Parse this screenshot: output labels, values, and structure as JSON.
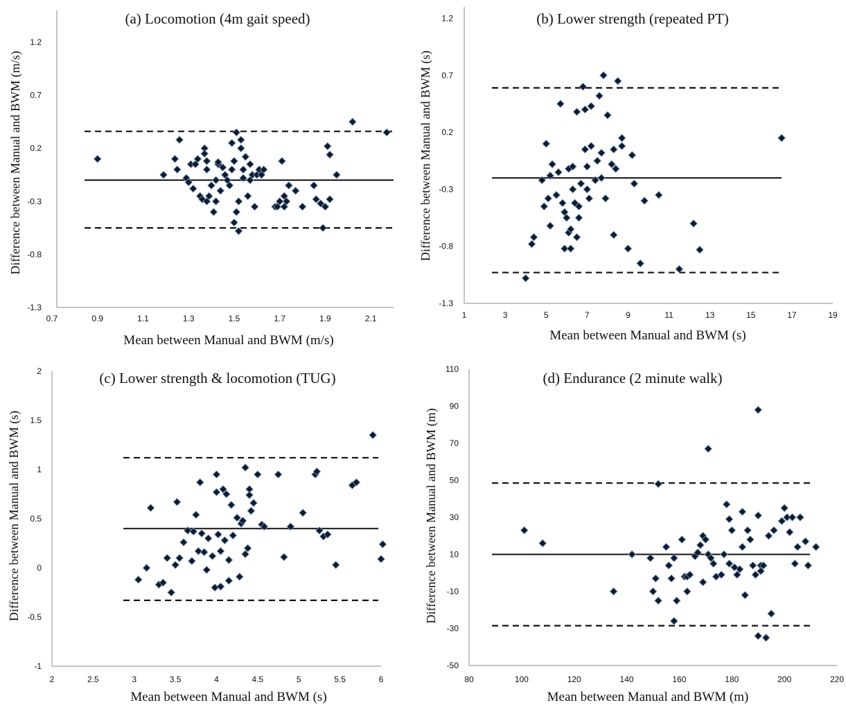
{
  "chart_data": [
    {
      "type": "scatter",
      "title": "(a) Locomotion (4m gait speed)",
      "xlabel": "Mean between Manual and BWM (m/s)",
      "ylabel": "Difference between Manual and BWM (m/s)",
      "xlim": [
        0.7,
        2.2
      ],
      "ylim": [
        -1.3,
        1.5
      ],
      "xticks": [
        "0.7",
        "0.9",
        "1.1",
        "1.3",
        "1.5",
        "1.7",
        "1.9",
        "2.1"
      ],
      "yticks": [
        "-1.3",
        "-0.8",
        "-0.3",
        "0.2",
        "0.7",
        "1.2"
      ],
      "mean_line": -0.1,
      "limits_of_agreement": [
        0.36,
        -0.55
      ],
      "x": [
        0.9,
        1.19,
        1.24,
        1.25,
        1.26,
        1.29,
        1.3,
        1.31,
        1.32,
        1.33,
        1.34,
        1.35,
        1.36,
        1.37,
        1.37,
        1.38,
        1.38,
        1.38,
        1.39,
        1.4,
        1.41,
        1.42,
        1.42,
        1.43,
        1.43,
        1.44,
        1.45,
        1.46,
        1.47,
        1.48,
        1.49,
        1.49,
        1.5,
        1.5,
        1.51,
        1.51,
        1.52,
        1.52,
        1.53,
        1.53,
        1.54,
        1.54,
        1.55,
        1.56,
        1.57,
        1.57,
        1.58,
        1.59,
        1.6,
        1.61,
        1.62,
        1.63,
        1.68,
        1.69,
        1.7,
        1.71,
        1.72,
        1.72,
        1.73,
        1.74,
        1.77,
        1.8,
        1.85,
        1.86,
        1.88,
        1.89,
        1.9,
        1.91,
        1.92,
        1.92,
        1.95,
        2.02,
        2.17
      ],
      "y": [
        0.1,
        -0.05,
        0.1,
        0.0,
        0.28,
        -0.08,
        -0.12,
        0.05,
        -0.18,
        0.05,
        0.1,
        -0.25,
        -0.28,
        0.2,
        0.15,
        -0.3,
        0.0,
        0.08,
        -0.25,
        -0.15,
        -0.4,
        -0.1,
        -0.3,
        0.05,
        0.07,
        -0.2,
        0.02,
        -0.05,
        -0.1,
        -0.15,
        0.25,
        0.0,
        -0.5,
        0.08,
        0.35,
        -0.4,
        -0.58,
        -0.3,
        0.2,
        0.28,
        0.0,
        -0.08,
        0.12,
        -0.25,
        -0.1,
        0.05,
        -0.05,
        -0.35,
        -0.05,
        0.0,
        -0.05,
        0.0,
        -0.35,
        -0.35,
        -0.3,
        0.08,
        -0.35,
        -0.25,
        -0.3,
        -0.15,
        -0.2,
        -0.35,
        -0.15,
        -0.28,
        -0.32,
        -0.55,
        -0.35,
        0.22,
        -0.28,
        0.14,
        -0.05,
        0.45,
        0.35
      ]
    },
    {
      "type": "scatter",
      "title": "(b) Lower strength (repeated PT)",
      "xlabel": "Mean between Manual and BWM (s)",
      "ylabel": "Difference between Manual and BWM (s)",
      "xlim": [
        1,
        19
      ],
      "ylim": [
        -1.3,
        1.3
      ],
      "xticks": [
        "1",
        "3",
        "5",
        "7",
        "9",
        "11",
        "13",
        "15",
        "17",
        "19"
      ],
      "yticks": [
        "-1.3",
        "-0.8",
        "-0.3",
        "0.2",
        "0.7",
        "1.2"
      ],
      "mean_line": -0.2,
      "limits_of_agreement": [
        0.59,
        -1.03
      ],
      "x": [
        4.0,
        4.3,
        4.4,
        4.8,
        4.9,
        5.0,
        5.1,
        5.2,
        5.2,
        5.3,
        5.5,
        5.6,
        5.7,
        5.8,
        5.9,
        5.9,
        6.0,
        6.1,
        6.1,
        6.2,
        6.2,
        6.3,
        6.3,
        6.4,
        6.5,
        6.5,
        6.6,
        6.6,
        6.7,
        6.8,
        6.9,
        6.9,
        7.0,
        7.0,
        7.1,
        7.2,
        7.2,
        7.4,
        7.5,
        7.6,
        7.7,
        7.7,
        7.8,
        7.9,
        8.0,
        8.2,
        8.3,
        8.3,
        8.4,
        8.5,
        8.7,
        8.7,
        9.0,
        9.2,
        9.3,
        9.6,
        9.8,
        10.5,
        11.5,
        12.2,
        12.5,
        16.5
      ],
      "y": [
        -1.08,
        -0.78,
        -0.72,
        -0.22,
        -0.45,
        0.1,
        -0.38,
        -0.62,
        -0.18,
        -0.08,
        -0.35,
        -0.15,
        0.45,
        -0.42,
        -0.82,
        -0.5,
        -0.55,
        -0.12,
        -0.68,
        -0.82,
        -0.65,
        -0.1,
        -0.3,
        -0.42,
        0.38,
        -0.72,
        -0.55,
        -0.45,
        -0.25,
        0.6,
        0.05,
        0.4,
        -0.3,
        -0.1,
        -0.38,
        0.08,
        0.43,
        -0.22,
        -0.05,
        0.52,
        -0.2,
        0.02,
        0.7,
        -0.38,
        0.35,
        -0.08,
        -0.7,
        0.05,
        -0.12,
        0.65,
        0.08,
        0.15,
        -0.82,
        0.0,
        -0.25,
        -0.95,
        -0.4,
        -0.35,
        -1.0,
        -0.6,
        -0.83,
        0.15
      ]
    },
    {
      "type": "scatter",
      "title": "(c) Lower strength & locomotion (TUG)",
      "xlabel": "Mean between Manual and BWM (s)",
      "ylabel": "Difference between Manual and BWM (s)",
      "xlim": [
        2,
        6
      ],
      "ylim": [
        -1,
        2
      ],
      "xticks": [
        "2",
        "2.5",
        "3",
        "3.5",
        "4",
        "4.5",
        "5",
        "5.5",
        "6"
      ],
      "yticks": [
        "-1",
        "-0.5",
        "0",
        "0.5",
        "1",
        "1.5",
        "2"
      ],
      "mean_line": 0.4,
      "limits_of_agreement": [
        1.12,
        -0.33
      ],
      "x": [
        3.05,
        3.15,
        3.2,
        3.3,
        3.35,
        3.4,
        3.45,
        3.5,
        3.52,
        3.55,
        3.6,
        3.65,
        3.7,
        3.72,
        3.75,
        3.78,
        3.8,
        3.82,
        3.85,
        3.88,
        3.9,
        3.95,
        3.98,
        4.0,
        4.0,
        4.02,
        4.05,
        4.05,
        4.08,
        4.1,
        4.12,
        4.15,
        4.15,
        4.18,
        4.2,
        4.25,
        4.28,
        4.3,
        4.32,
        4.35,
        4.35,
        4.38,
        4.4,
        4.4,
        4.42,
        4.45,
        4.5,
        4.55,
        4.58,
        4.75,
        4.82,
        4.9,
        5.05,
        5.2,
        5.22,
        5.25,
        5.3,
        5.35,
        5.45,
        5.65,
        5.7,
        5.9,
        6.0,
        6.02
      ],
      "y": [
        -0.12,
        0.0,
        0.61,
        -0.17,
        -0.15,
        0.1,
        -0.25,
        0.03,
        0.67,
        0.1,
        0.26,
        0.38,
        0.07,
        0.37,
        0.54,
        0.17,
        0.87,
        0.35,
        0.16,
        -0.02,
        0.3,
        0.12,
        -0.2,
        0.77,
        0.95,
        0.34,
        0.17,
        -0.19,
        0.8,
        0.28,
        0.75,
        0.08,
        -0.13,
        0.64,
        0.33,
        0.51,
        -0.09,
        0.45,
        0.48,
        0.14,
        1.02,
        0.2,
        0.8,
        0.74,
        0.58,
        0.66,
        0.95,
        0.44,
        0.42,
        0.95,
        0.11,
        0.42,
        0.56,
        0.95,
        0.98,
        0.38,
        0.32,
        0.34,
        0.03,
        0.84,
        0.87,
        1.35,
        0.09,
        0.24
      ]
    },
    {
      "type": "scatter",
      "title": "(d) Endurance (2 minute walk)",
      "xlabel": "Mean between Manual and BWM (m)",
      "ylabel": "Difference between Manual and BWM (m)",
      "xlim": [
        80,
        220
      ],
      "ylim": [
        -50,
        110
      ],
      "xticks": [
        "80",
        "100",
        "120",
        "140",
        "160",
        "180",
        "200",
        "220"
      ],
      "yticks": [
        "-50",
        "-30",
        "-10",
        "10",
        "30",
        "50",
        "70",
        "90",
        "110"
      ],
      "mean_line": 10,
      "limits_of_agreement": [
        48.5,
        -28.5
      ],
      "x": [
        101,
        108,
        135,
        142,
        149,
        150,
        151,
        152,
        152,
        155,
        156,
        157,
        158,
        158,
        159,
        161,
        162,
        163,
        163,
        164,
        166,
        167,
        168,
        169,
        169,
        170,
        171,
        171,
        172,
        173,
        174,
        176,
        177,
        178,
        179,
        179,
        180,
        181,
        182,
        183,
        184,
        184,
        185,
        186,
        187,
        188,
        189,
        190,
        190,
        190,
        191,
        191,
        192,
        193,
        194,
        195,
        196,
        199,
        200,
        201,
        202,
        203,
        204,
        205,
        206,
        208,
        209,
        212
      ],
      "y": [
        23,
        16,
        -10,
        10,
        8,
        -10,
        -3,
        -15,
        48,
        14,
        4,
        -3,
        8,
        -26,
        -15,
        18,
        -2,
        -2,
        -10,
        -1,
        9,
        11,
        15,
        20,
        -5,
        18,
        67,
        10,
        8,
        5,
        -2,
        -1,
        10,
        37,
        29,
        5,
        23,
        3,
        -1,
        2,
        33,
        14,
        -12,
        23,
        18,
        4,
        -1,
        -34,
        31,
        88,
        4,
        1,
        4,
        -35,
        20,
        -22,
        23,
        28,
        35,
        30,
        22,
        30,
        5,
        14,
        30,
        17,
        4,
        14
      ]
    }
  ]
}
